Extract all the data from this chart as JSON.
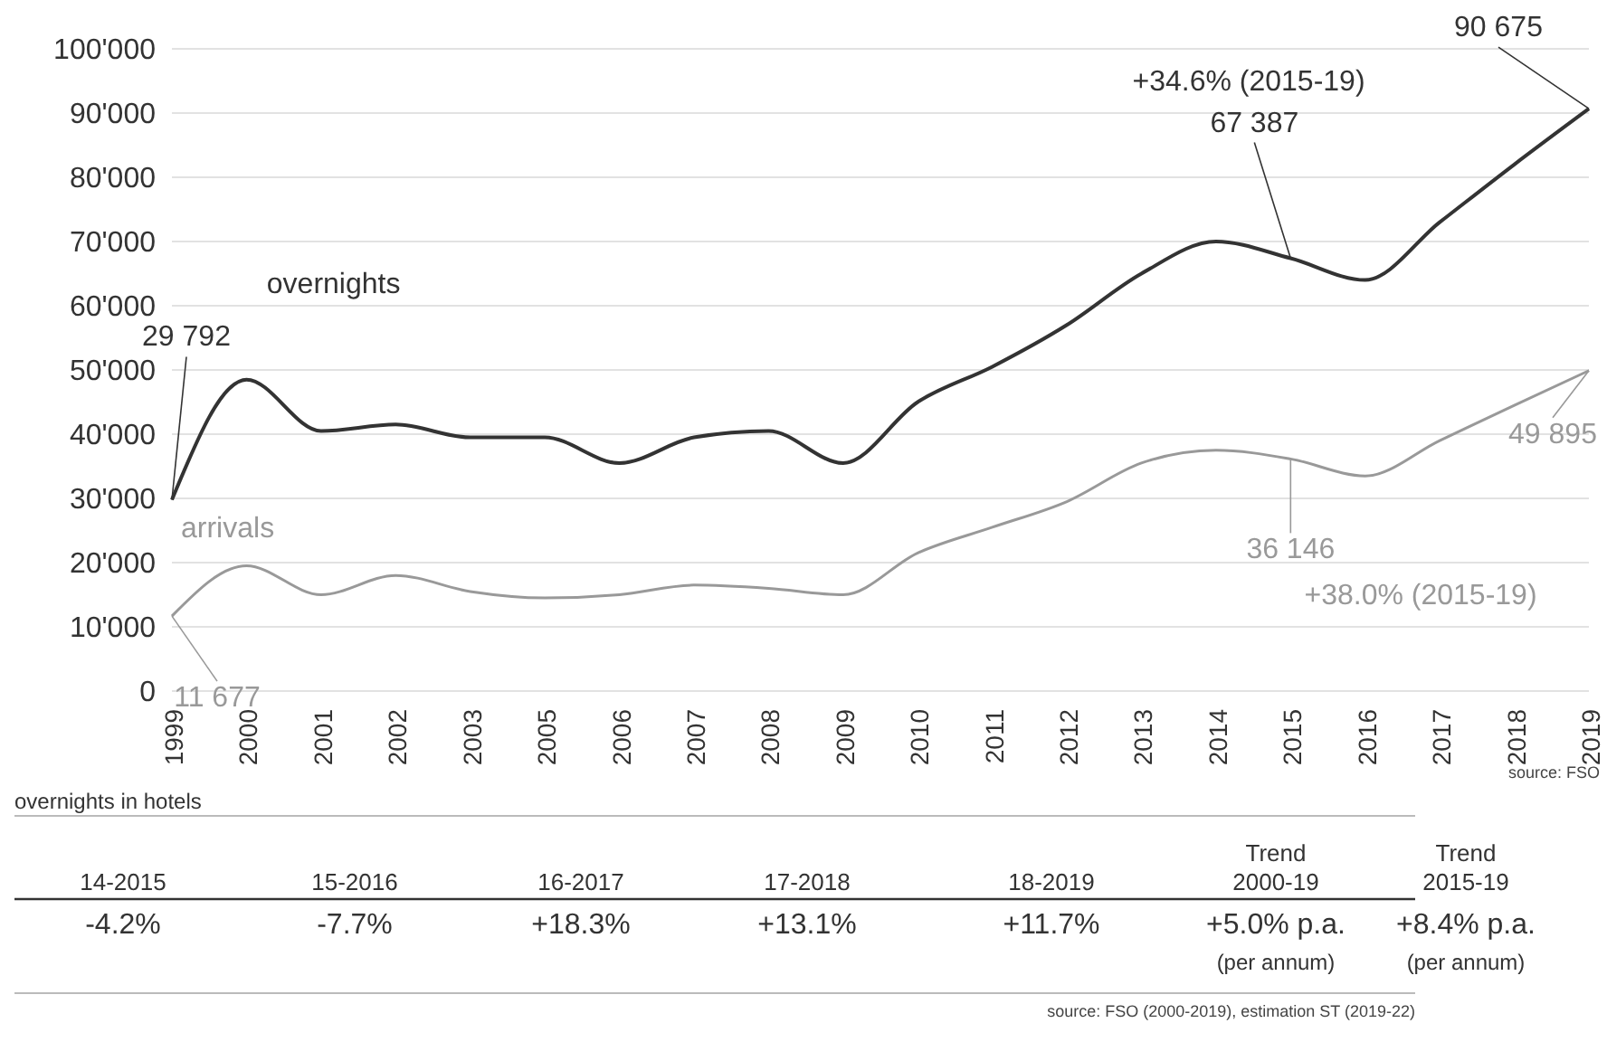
{
  "chart_data": {
    "type": "line",
    "categories": [
      "1999",
      "2000",
      "2001",
      "2002",
      "2003",
      "2005",
      "2006",
      "2007",
      "2008",
      "2009",
      "2010",
      "2011",
      "2012",
      "2013",
      "2014",
      "2015",
      "2016",
      "2017",
      "2018",
      "2019"
    ],
    "series": [
      {
        "name": "overnights",
        "color": "#333333",
        "values": [
          29792,
          48500,
          40500,
          41500,
          39500,
          39500,
          35500,
          39500,
          40500,
          35500,
          45000,
          50500,
          57000,
          65000,
          70000,
          67387,
          64000,
          73000,
          82000,
          90675
        ]
      },
      {
        "name": "arrivals",
        "color": "#999999",
        "values": [
          11677,
          19500,
          15000,
          18000,
          15500,
          14500,
          15000,
          16500,
          16000,
          15000,
          21500,
          25500,
          29500,
          35500,
          37500,
          36146,
          33500,
          39000,
          44500,
          49895
        ]
      }
    ],
    "ylim": [
      0,
      100000
    ],
    "yticks": [
      0,
      {
        "value": 10000,
        "label": "10'000"
      },
      {
        "value": 20000,
        "label": "20'000"
      },
      {
        "value": 30000,
        "label": "30'000"
      },
      {
        "value": 40000,
        "label": "40'000"
      },
      {
        "value": 50000,
        "label": "50'000"
      },
      {
        "value": 60000,
        "label": "60'000"
      },
      {
        "value": 70000,
        "label": "70'000"
      },
      {
        "value": 80000,
        "label": "80'000"
      },
      {
        "value": 90000,
        "label": "90'000"
      },
      {
        "value": 100000,
        "label": "100'000"
      }
    ],
    "grid": "y",
    "legend": false,
    "annotations": [
      {
        "text": "29 792",
        "x": "1999",
        "y": 29792
      },
      {
        "text": "67 387",
        "x": "2015",
        "y": 67387
      },
      {
        "text": "90 675",
        "x": "2019",
        "y": 90675
      },
      {
        "text": "11 677",
        "x": "1999",
        "y": 11677
      },
      {
        "text": "36 146",
        "x": "2015",
        "y": 36146
      },
      {
        "text": "49 895",
        "x": "2019",
        "y": 49895
      },
      "+34.6% (2015-19)",
      "+38.0% (2015-19)",
      "source: FSO",
      "overnights in hotels",
      "14-2015",
      "15-2016",
      "16-2017",
      "17-2018",
      "18-2019",
      "Trend 2000-19",
      "Trend 2015-19",
      "-4.2%",
      "-7.7%",
      "+18.3%",
      "+13.1%",
      "+11.7%",
      "+5.0% p.a.",
      "+8.4% p.a.",
      "(per annum)",
      "(per annum)",
      "source: FSO (2000-2019), estimation ST (2019-22)"
    ]
  }
}
